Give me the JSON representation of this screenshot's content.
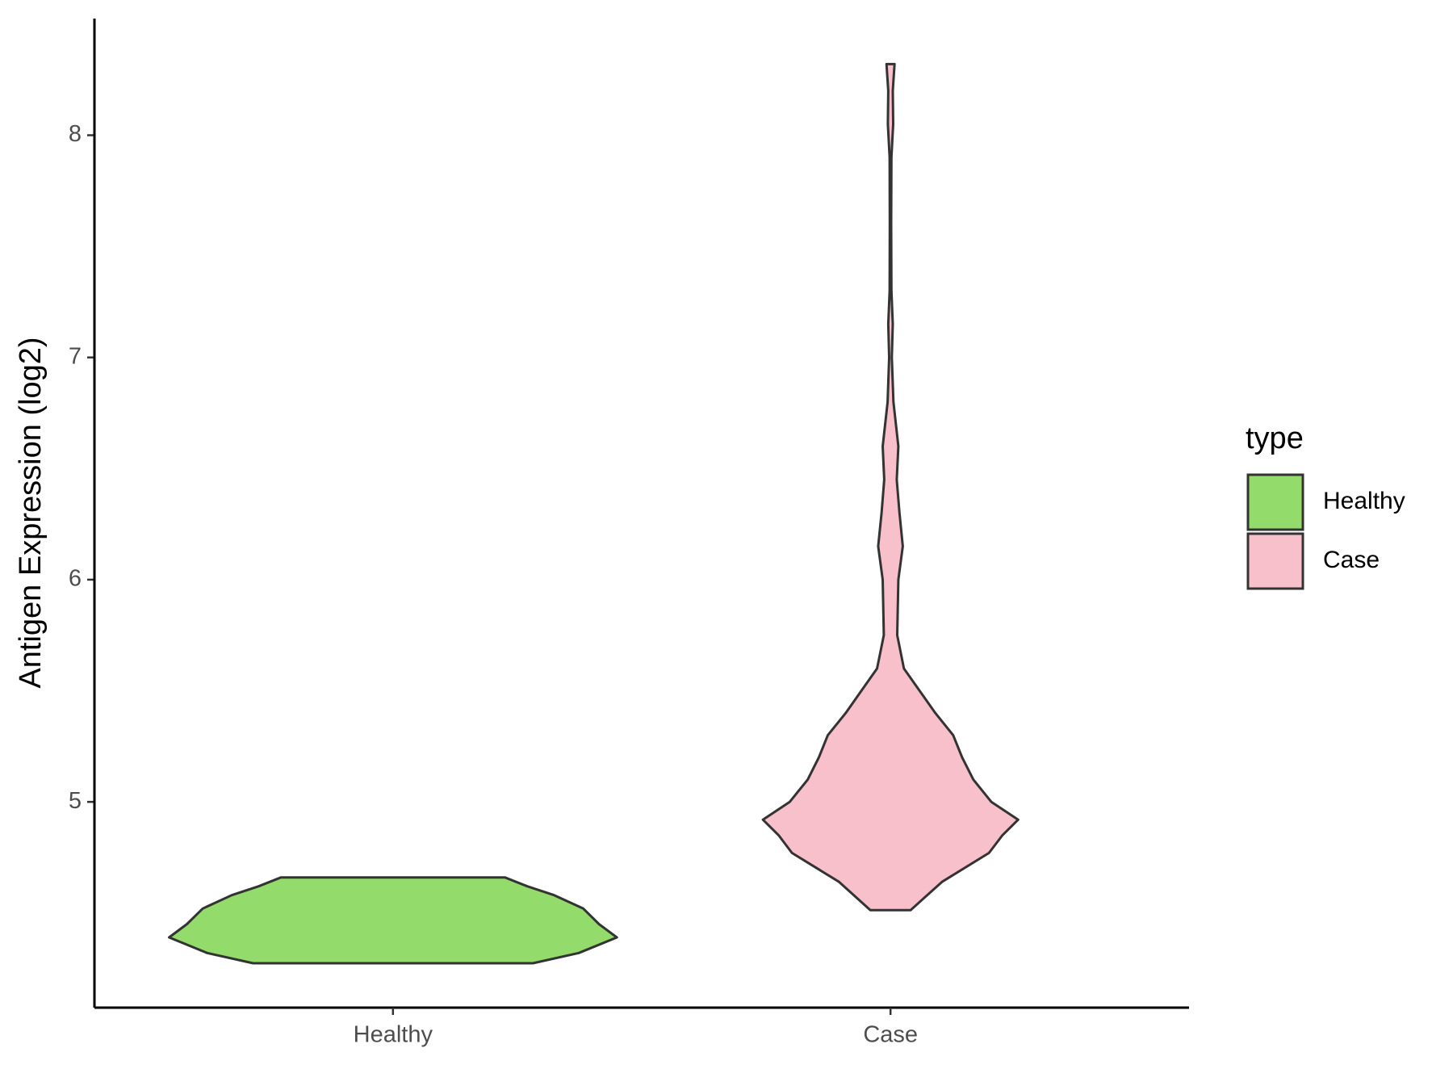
{
  "chart_data": {
    "type": "violin",
    "y_label": "Antigen Expression (log2)",
    "categories": [
      "Healthy",
      "Case"
    ],
    "legend_title": "type",
    "legend_position": "right",
    "series": [
      {
        "name": "Healthy",
        "color": "#93DB6A",
        "y": [
          4.274,
          4.32,
          4.39,
          4.45,
          4.52,
          4.58,
          4.62,
          4.66
        ],
        "width": [
          0.625,
          0.83,
          1.0,
          0.92,
          0.85,
          0.72,
          0.6,
          0.5
        ]
      },
      {
        "name": "Case",
        "color": "#F8C0CB",
        "y": [
          4.513,
          4.64,
          4.77,
          4.85,
          4.92,
          5.0,
          5.1,
          5.2,
          5.3,
          5.4,
          5.5,
          5.6,
          5.75,
          6.0,
          6.15,
          6.3,
          6.45,
          6.6,
          6.8,
          7.0,
          7.15,
          7.3,
          7.6,
          7.9,
          8.05,
          8.2,
          8.32
        ],
        "width": [
          0.09,
          0.23,
          0.44,
          0.5,
          0.57,
          0.45,
          0.37,
          0.32,
          0.28,
          0.2,
          0.13,
          0.06,
          0.03,
          0.035,
          0.055,
          0.04,
          0.028,
          0.035,
          0.013,
          0.006,
          0.01,
          0.004,
          0.003,
          0.004,
          0.012,
          0.01,
          0.018
        ]
      }
    ],
    "ylim": [
      4.074,
      8.525
    ],
    "yticks": [
      5,
      6,
      7,
      8
    ]
  }
}
